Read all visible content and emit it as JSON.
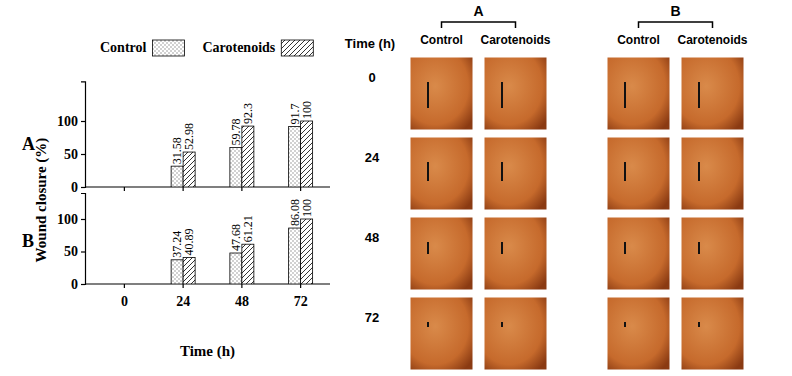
{
  "chart_data": [
    {
      "type": "bar",
      "title": "A",
      "y_label": "Wound closure (%)",
      "categories": [
        "0",
        "24",
        "48",
        "72"
      ],
      "series": [
        {
          "name": "Control",
          "color": "#808080",
          "values": [
            null,
            31.58,
            59.78,
            91.7
          ]
        },
        {
          "name": "Carotenoids",
          "color": "#000000",
          "values": [
            null,
            52.98,
            92.3,
            100
          ]
        }
      ],
      "ylim": [
        0,
        160
      ],
      "yticks": [
        0,
        50,
        100
      ],
      "data_labels": true,
      "tick_labels": "y",
      "legend": "top"
    },
    {
      "type": "bar",
      "title": "B",
      "x_label": "Time (h)",
      "categories": [
        "0",
        "24",
        "48",
        "72"
      ],
      "series": [
        {
          "color": "#808080",
          "values": [
            null,
            37.24,
            47.68,
            86.08
          ]
        },
        {
          "color": "#000000",
          "values": [
            null,
            40.89,
            61.21,
            100
          ]
        }
      ],
      "ylim": [
        0,
        140
      ],
      "yticks": [
        0,
        50,
        100
      ],
      "data_labels": true
    }
  ],
  "photo_panel": {
    "title": "Time (h)",
    "groups": [
      {
        "label": "A",
        "columns": [
          "Control",
          "Carotenoids"
        ]
      },
      {
        "label": "B",
        "columns": [
          "Control",
          "Carotenoids"
        ]
      }
    ],
    "rows": [
      "0",
      "24",
      "48",
      "72"
    ]
  }
}
